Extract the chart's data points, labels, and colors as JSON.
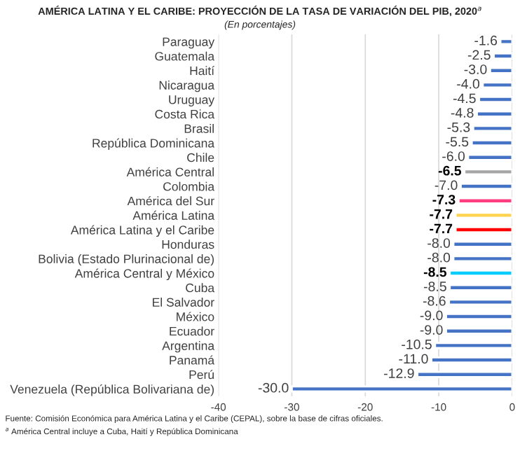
{
  "chart_data": {
    "type": "bar",
    "orientation": "horizontal",
    "title": "AMÉRICA LATINA Y EL CARIBE: PROYECCIÓN DE LA TASA DE VARIACIÓN DEL PIB, 2020$^{a}$",
    "subtitle": "(En porcentajes)",
    "categories": [
      "Paraguay",
      "Guatemala",
      "Haití",
      "Nicaragua",
      "Uruguay",
      "Costa Rica",
      "Brasil",
      "República Dominicana",
      "Chile",
      "América Central",
      "Colombia",
      "América del Sur",
      "América Latina",
      "América Latina y el Caribe",
      "Honduras",
      "Bolivia (Estado Plurinacional de)",
      "América Central y México",
      "Cuba",
      "El Salvador",
      "México",
      "Ecuador",
      "Argentina",
      "Panamá",
      "Perú",
      "Venezuela (República Bolivariana de)"
    ],
    "values": [
      -1.6,
      -2.5,
      -3.0,
      -4.0,
      -4.5,
      -4.8,
      -5.3,
      -5.5,
      -6.0,
      -6.5,
      -7.0,
      -7.3,
      -7.7,
      -7.7,
      -8.0,
      -8.0,
      -8.5,
      -8.5,
      -8.6,
      -9.0,
      -9.0,
      -10.5,
      -11.0,
      -12.9,
      -30.0
    ],
    "colors": [
      "#4472c4",
      "#4472c4",
      "#4472c4",
      "#4472c4",
      "#4472c4",
      "#4472c4",
      "#4472c4",
      "#4472c4",
      "#4472c4",
      "#a5a5a5",
      "#4472c4",
      "#ff3d7f",
      "#ffd34f",
      "#ff0000",
      "#4472c4",
      "#4472c4",
      "#00ccff",
      "#4472c4",
      "#4472c4",
      "#4472c4",
      "#4472c4",
      "#4472c4",
      "#4472c4",
      "#4472c4",
      "#4472c4"
    ],
    "value_labels": [
      "-1.6",
      "-2.5",
      "-3.0",
      "-4.0",
      "-4.5",
      "-4.8",
      "-5.3",
      "-5.5",
      "-6.0",
      "-6.5",
      "-7.0",
      "-7.3",
      "-7.7",
      "-7.7",
      "-8.0",
      "-8.0",
      "-8.5",
      "-8.5",
      "-8.6",
      "-9.0",
      "-9.0",
      "-10.5",
      "-11.0",
      "-12.9",
      "-30.0"
    ],
    "xlim": [
      -40,
      0
    ],
    "xticks": [
      -40,
      -30,
      -20,
      -10,
      0
    ],
    "grid": "x",
    "legend": false,
    "annotations": [
      "Fuente: Comisión Económica para América Latina y el Caribe (CEPAL), sobre la base de cifras oficiales.",
      "$^{a}$ América Central incluye a Cuba, Haití y República Dominicana"
    ]
  }
}
